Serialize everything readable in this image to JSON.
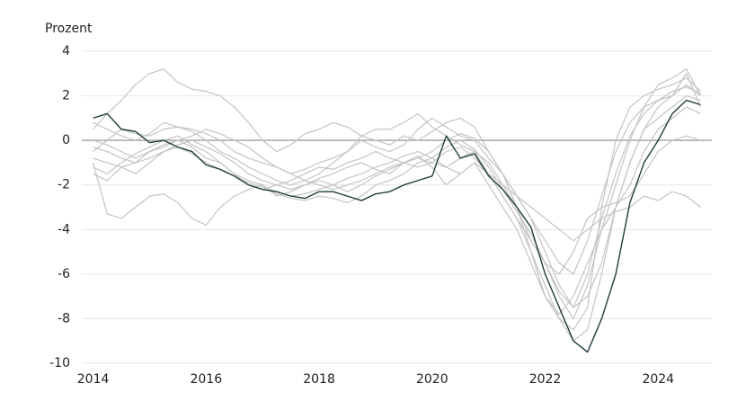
{
  "chart_data": {
    "type": "line",
    "y_label": "Prozent",
    "x": [
      2014,
      2014.25,
      2014.5,
      2014.75,
      2015,
      2015.25,
      2015.5,
      2015.75,
      2016,
      2016.25,
      2016.5,
      2016.75,
      2017,
      2017.25,
      2017.5,
      2017.75,
      2018,
      2018.25,
      2018.5,
      2018.75,
      2019,
      2019.25,
      2019.5,
      2019.75,
      2020,
      2020.25,
      2020.5,
      2020.75,
      2021,
      2021.25,
      2021.5,
      2021.75,
      2022,
      2022.25,
      2022.5,
      2022.75,
      2023,
      2023.25,
      2023.5,
      2023.75,
      2024,
      2024.25,
      2024.5,
      2024.75
    ],
    "xlim": [
      2013.8,
      2024.95
    ],
    "xticks": [
      2014,
      2016,
      2018,
      2020,
      2022,
      2024
    ],
    "ylim": [
      -10,
      4
    ],
    "yticks": [
      -10,
      -8,
      -6,
      -4,
      -2,
      0,
      2,
      4
    ],
    "grid": true,
    "series": [
      {
        "color": "#c4c4c4",
        "values": [
          0.5,
          1.2,
          1.8,
          2.5,
          3.0,
          3.2,
          2.6,
          2.3,
          2.2,
          2.0,
          1.5,
          0.8,
          0.0,
          -0.5,
          -0.2,
          0.3,
          0.5,
          0.8,
          0.6,
          0.2,
          0.0,
          -0.2,
          0.2,
          0.0,
          0.4,
          0.8,
          1.0,
          0.6,
          -0.5,
          -1.5,
          -3.0,
          -5.0,
          -7.0,
          -8.0,
          -8.5,
          -7.5,
          -3.0,
          0.0,
          1.5,
          2.0,
          2.3,
          2.5,
          2.8,
          2.2
        ]
      },
      {
        "color": "#c4c4c4",
        "values": [
          -1.0,
          -3.3,
          -3.5,
          -3.0,
          -2.5,
          -2.4,
          -2.8,
          -3.5,
          -3.8,
          -3.0,
          -2.5,
          -2.2,
          -2.0,
          -2.4,
          -2.6,
          -2.7,
          -2.5,
          -2.6,
          -2.8,
          -2.5,
          -2.0,
          -1.8,
          -1.5,
          -1.0,
          -0.8,
          -1.2,
          -1.5,
          -1.0,
          -1.5,
          -2.0,
          -2.5,
          -3.0,
          -3.5,
          -4.0,
          -4.5,
          -4.0,
          -3.5,
          -3.2,
          -3.0,
          -2.5,
          -2.7,
          -2.3,
          -2.5,
          -3.0
        ]
      },
      {
        "color": "#c4c4c4",
        "values": [
          -0.5,
          0.0,
          0.5,
          0.3,
          0.2,
          0.5,
          0.6,
          0.4,
          0.0,
          -0.5,
          -0.8,
          -1.2,
          -1.5,
          -1.8,
          -2.0,
          -1.8,
          -1.5,
          -1.0,
          -0.5,
          0.0,
          -0.3,
          -0.5,
          -0.2,
          0.5,
          1.0,
          0.6,
          0.2,
          0.0,
          -0.8,
          -1.5,
          -2.5,
          -3.5,
          -4.5,
          -5.5,
          -6.0,
          -4.5,
          -2.5,
          -0.5,
          0.8,
          1.5,
          1.8,
          2.0,
          2.5,
          2.0
        ]
      },
      {
        "color": "#c4c4c4",
        "values": [
          -1.2,
          -1.5,
          -1.0,
          -0.6,
          -0.3,
          0.0,
          0.2,
          -0.2,
          -0.5,
          -1.0,
          -1.5,
          -2.0,
          -2.2,
          -2.0,
          -1.8,
          -1.5,
          -1.2,
          -1.3,
          -1.0,
          -0.8,
          -0.5,
          -0.8,
          -1.0,
          -1.2,
          -1.0,
          -0.5,
          -0.3,
          -0.8,
          -1.5,
          -2.5,
          -3.5,
          -5.0,
          -6.5,
          -8.0,
          -9.0,
          -8.5,
          -6.0,
          -3.0,
          -1.0,
          0.5,
          1.5,
          2.0,
          3.0,
          1.5
        ]
      },
      {
        "color": "#c4c4c4",
        "values": [
          0.0,
          -0.2,
          -0.5,
          -0.8,
          -0.5,
          -0.3,
          0.0,
          0.2,
          0.5,
          0.3,
          0.0,
          -0.3,
          -0.8,
          -1.2,
          -1.5,
          -1.8,
          -2.0,
          -2.2,
          -2.0,
          -1.8,
          -1.5,
          -1.2,
          -1.0,
          -0.8,
          -1.0,
          -1.2,
          -0.8,
          -0.5,
          -1.5,
          -2.5,
          -3.5,
          -4.5,
          -5.5,
          -6.0,
          -5.0,
          -3.5,
          -3.0,
          -2.8,
          -2.5,
          -1.5,
          -0.5,
          0.0,
          0.2,
          0.0
        ]
      },
      {
        "color": "#c4c4c4",
        "values": [
          -1.5,
          -1.8,
          -1.2,
          -1.0,
          -0.5,
          -0.2,
          0.0,
          -0.3,
          -0.8,
          -1.0,
          -1.5,
          -1.8,
          -2.0,
          -2.5,
          -2.3,
          -2.0,
          -1.7,
          -1.5,
          -1.2,
          -1.0,
          -1.3,
          -1.5,
          -1.0,
          -0.7,
          -1.2,
          -2.0,
          -1.5,
          -1.0,
          -2.0,
          -3.0,
          -4.0,
          -5.5,
          -7.0,
          -7.8,
          -7.0,
          -5.5,
          -4.0,
          -3.0,
          -2.0,
          -0.5,
          0.5,
          1.0,
          1.5,
          1.2
        ]
      },
      {
        "color": "#c4c4c4",
        "values": [
          0.8,
          0.5,
          0.2,
          0.0,
          0.3,
          0.8,
          0.6,
          0.5,
          0.3,
          0.0,
          -0.5,
          -0.8,
          -1.0,
          -1.2,
          -1.5,
          -1.3,
          -1.0,
          -0.8,
          -0.5,
          0.2,
          0.5,
          0.5,
          0.8,
          1.2,
          0.6,
          0.2,
          -0.2,
          -0.5,
          -1.0,
          -2.0,
          -3.0,
          -4.5,
          -5.5,
          -7.0,
          -8.0,
          -6.5,
          -4.0,
          -2.0,
          0.0,
          1.5,
          2.5,
          2.8,
          3.2,
          2.0
        ]
      },
      {
        "color": "#c4c4c4",
        "values": [
          -0.3,
          -0.5,
          -0.8,
          -1.0,
          -0.8,
          -0.5,
          -0.2,
          0.0,
          -0.3,
          -0.6,
          -1.0,
          -1.5,
          -1.8,
          -2.0,
          -2.2,
          -2.0,
          -1.8,
          -2.0,
          -2.3,
          -2.0,
          -1.6,
          -1.3,
          -1.0,
          -0.8,
          -0.5,
          0.0,
          0.3,
          0.1,
          -0.5,
          -1.5,
          -2.5,
          -3.5,
          -5.0,
          -6.5,
          -7.5,
          -7.0,
          -5.5,
          -3.0,
          -1.0,
          0.5,
          1.0,
          1.5,
          2.0,
          1.8
        ]
      },
      {
        "color": "#c4c4c4",
        "values": [
          -0.8,
          -1.0,
          -1.2,
          -1.5,
          -1.0,
          -0.5,
          -0.3,
          -0.6,
          -1.0,
          -1.3,
          -1.6,
          -1.9,
          -2.1,
          -2.3,
          -2.5,
          -2.4,
          -2.2,
          -2.0,
          -1.7,
          -1.5,
          -1.2,
          -1.0,
          -0.7,
          -0.5,
          -0.8,
          -0.3,
          0.0,
          -0.4,
          -1.2,
          -2.2,
          -3.2,
          -4.2,
          -5.5,
          -6.8,
          -7.5,
          -6.0,
          -3.5,
          -1.5,
          0.2,
          1.2,
          1.8,
          2.2,
          2.4,
          2.1
        ]
      },
      {
        "color": "#1f3b3d",
        "values": [
          1.0,
          1.2,
          0.5,
          0.4,
          -0.1,
          0.0,
          -0.3,
          -0.5,
          -1.1,
          -1.3,
          -1.6,
          -2.0,
          -2.2,
          -2.3,
          -2.5,
          -2.6,
          -2.3,
          -2.3,
          -2.5,
          -2.7,
          -2.4,
          -2.3,
          -2.0,
          -1.8,
          -1.6,
          0.2,
          -0.8,
          -0.6,
          -1.6,
          -2.2,
          -3.0,
          -3.9,
          -6.0,
          -7.5,
          -9.0,
          -9.5,
          -8.0,
          -6.0,
          -2.8,
          -1.0,
          0.0,
          1.2,
          1.8,
          1.6
        ]
      }
    ]
  }
}
